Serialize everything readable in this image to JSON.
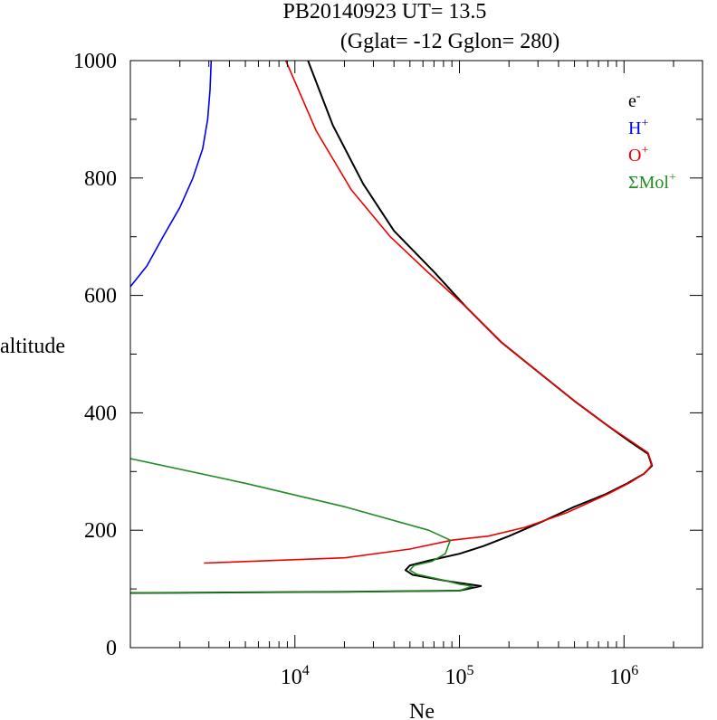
{
  "title": {
    "line1": "PB20140923   UT=  13.5",
    "line2": "(Gglat= -12   Gglon=  280)"
  },
  "chart_data": {
    "type": "line",
    "xlabel": "Ne",
    "ylabel": "altitude",
    "x_scale": "log",
    "xlim": [
      1000,
      3000000
    ],
    "ylim": [
      0,
      1000
    ],
    "x_ticks": [
      {
        "value": 10000,
        "base": "10",
        "exp": "4"
      },
      {
        "value": 100000,
        "base": "10",
        "exp": "5"
      },
      {
        "value": 1000000,
        "base": "10",
        "exp": "6"
      }
    ],
    "y_ticks": [
      {
        "value": 0,
        "label": "0"
      },
      {
        "value": 200,
        "label": "200"
      },
      {
        "value": 400,
        "label": "400"
      },
      {
        "value": 600,
        "label": "600"
      },
      {
        "value": 800,
        "label": "800"
      },
      {
        "value": 1000,
        "label": "1000"
      }
    ],
    "grid": false,
    "legend_position": "top-right",
    "series": [
      {
        "name": "e",
        "sup": "-",
        "color": "#000000",
        "points": [
          [
            1000,
            93
          ],
          [
            20000,
            95
          ],
          [
            100000,
            97
          ],
          [
            135000,
            105
          ],
          [
            90000,
            112
          ],
          [
            52000,
            124
          ],
          [
            47000,
            132
          ],
          [
            50000,
            140
          ],
          [
            65000,
            148
          ],
          [
            100000,
            160
          ],
          [
            140000,
            173
          ],
          [
            200000,
            190
          ],
          [
            320000,
            215
          ],
          [
            500000,
            240
          ],
          [
            780000,
            262
          ],
          [
            1050000,
            280
          ],
          [
            1320000,
            296
          ],
          [
            1480000,
            310
          ],
          [
            1400000,
            330
          ],
          [
            1100000,
            350
          ],
          [
            780000,
            380
          ],
          [
            500000,
            420
          ],
          [
            300000,
            470
          ],
          [
            180000,
            520
          ],
          [
            110000,
            580
          ],
          [
            70000,
            640
          ],
          [
            40000,
            710
          ],
          [
            26000,
            790
          ],
          [
            17000,
            890
          ],
          [
            12000,
            1000
          ]
        ]
      },
      {
        "name": "H",
        "sup": "+",
        "color": "#0000ee",
        "points": [
          [
            1000,
            615
          ],
          [
            1260,
            650
          ],
          [
            1580,
            700
          ],
          [
            2000,
            750
          ],
          [
            2400,
            800
          ],
          [
            2750,
            850
          ],
          [
            2950,
            900
          ],
          [
            3050,
            950
          ],
          [
            3100,
            1000
          ]
        ]
      },
      {
        "name": "O",
        "sup": "+",
        "color": "#ee0000",
        "points": [
          [
            2800,
            144
          ],
          [
            20000,
            153
          ],
          [
            50000,
            168
          ],
          [
            90000,
            183
          ],
          [
            150000,
            190
          ],
          [
            250000,
            205
          ],
          [
            450000,
            230
          ],
          [
            800000,
            262
          ],
          [
            1100000,
            282
          ],
          [
            1350000,
            298
          ],
          [
            1480000,
            312
          ],
          [
            1400000,
            332
          ],
          [
            1100000,
            352
          ],
          [
            780000,
            380
          ],
          [
            500000,
            420
          ],
          [
            300000,
            470
          ],
          [
            180000,
            520
          ],
          [
            110000,
            580
          ],
          [
            64000,
            640
          ],
          [
            38000,
            700
          ],
          [
            22000,
            780
          ],
          [
            13500,
            880
          ],
          [
            8800,
            1000
          ]
        ]
      },
      {
        "name": "ΣMol",
        "sup": "+",
        "color": "#228b22",
        "points": [
          [
            1000,
            93
          ],
          [
            20000,
            95
          ],
          [
            100000,
            97
          ],
          [
            120000,
            105
          ],
          [
            100000,
            108
          ],
          [
            80000,
            115
          ],
          [
            55000,
            125
          ],
          [
            50000,
            132
          ],
          [
            53000,
            140
          ],
          [
            68000,
            147
          ],
          [
            82000,
            160
          ],
          [
            88000,
            183
          ],
          [
            65000,
            200
          ],
          [
            20000,
            240
          ],
          [
            5000,
            280
          ],
          [
            1000,
            322
          ]
        ]
      }
    ]
  }
}
